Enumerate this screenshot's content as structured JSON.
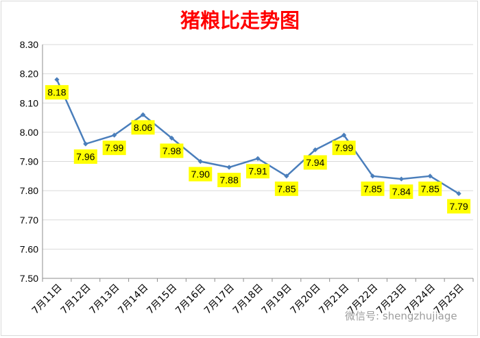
{
  "watermark": "微信号: shengzhujiage",
  "colors": {
    "title": "#ff0000",
    "line": "#4a7ebb",
    "label_bg": "#ffff00",
    "grid": "#d9d9d9"
  },
  "chart_data": {
    "type": "line",
    "title": "猪粮比走势图",
    "xlabel": "",
    "ylabel": "",
    "categories": [
      "7月11日",
      "7月12日",
      "7月13日",
      "7月14日",
      "7月15日",
      "7月16日",
      "7月17日",
      "7月18日",
      "7月19日",
      "7月20日",
      "7月21日",
      "7月22日",
      "7月23日",
      "7月24日",
      "7月25日"
    ],
    "series": [
      {
        "values": [
          8.18,
          7.96,
          7.99,
          8.06,
          7.98,
          7.9,
          7.88,
          7.91,
          7.85,
          7.94,
          7.99,
          7.85,
          7.84,
          7.85,
          7.79
        ]
      }
    ],
    "data_labels": [
      "8.18",
      "7.96",
      "7.99",
      "8.06",
      "7.98",
      "7.90",
      "7.88",
      "7.91",
      "7.85",
      "7.94",
      "7.99",
      "7.85",
      "7.84",
      "7.85",
      "7.79"
    ],
    "yticks": [
      "7.50",
      "7.60",
      "7.70",
      "7.80",
      "7.90",
      "8.00",
      "8.10",
      "8.20",
      "8.30"
    ],
    "ylim": [
      7.5,
      8.3
    ],
    "grid": true,
    "legend": "none"
  }
}
